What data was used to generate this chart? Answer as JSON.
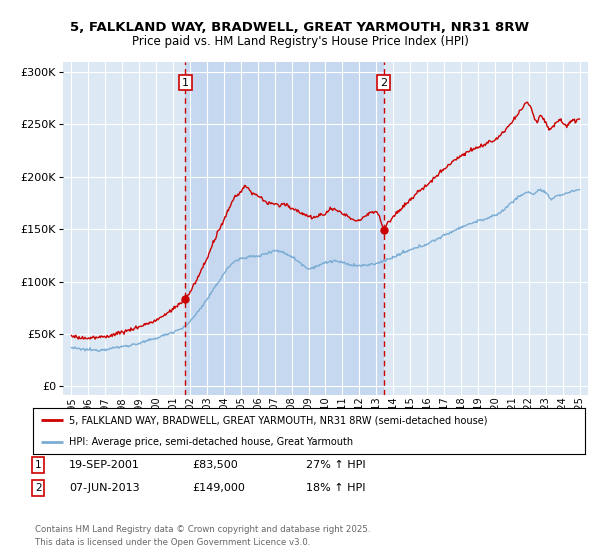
{
  "title_line1": "5, FALKLAND WAY, BRADWELL, GREAT YARMOUTH, NR31 8RW",
  "title_line2": "Price paid vs. HM Land Registry's House Price Index (HPI)",
  "background_color": "#dce9f5",
  "shaded_color": "#c5d8ef",
  "red_color": "#cc0000",
  "blue_color": "#7aacd4",
  "marker1_date": 2001.72,
  "marker2_date": 2013.43,
  "legend_label1": "5, FALKLAND WAY, BRADWELL, GREAT YARMOUTH, NR31 8RW (semi-detached house)",
  "legend_label2": "HPI: Average price, semi-detached house, Great Yarmouth",
  "annotation1_date": "19-SEP-2001",
  "annotation1_price": "£83,500",
  "annotation1_hpi": "27% ↑ HPI",
  "annotation2_date": "07-JUN-2013",
  "annotation2_price": "£149,000",
  "annotation2_hpi": "18% ↑ HPI",
  "footer_line1": "Contains HM Land Registry data © Crown copyright and database right 2025.",
  "footer_line2": "This data is licensed under the Open Government Licence v3.0.",
  "ylim_max": 310000,
  "ylim_min": -8000,
  "xmin": 1994.5,
  "xmax": 2025.5
}
